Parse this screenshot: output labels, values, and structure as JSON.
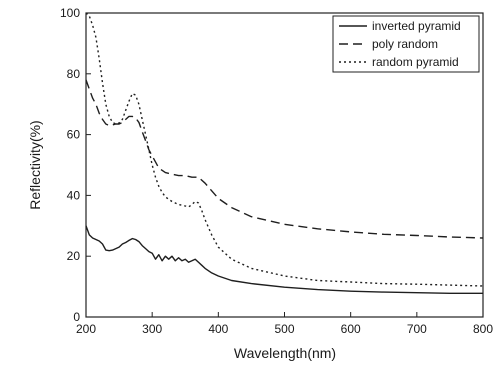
{
  "chart_data": {
    "type": "line",
    "title": "",
    "xlabel": "Wavelength(nm)",
    "ylabel": "Reflectivity(%)",
    "xlim": [
      200,
      800
    ],
    "ylim": [
      0,
      100
    ],
    "xticks": [
      200,
      300,
      400,
      500,
      600,
      700,
      800
    ],
    "yticks": [
      0,
      20,
      40,
      60,
      80,
      100
    ],
    "grid": false,
    "legend_position": "top-right",
    "series": [
      {
        "name": "inverted pyramid",
        "style": "solid",
        "x": [
          200,
          205,
          210,
          215,
          220,
          225,
          230,
          235,
          240,
          245,
          250,
          255,
          260,
          265,
          270,
          275,
          280,
          285,
          290,
          295,
          300,
          305,
          310,
          315,
          320,
          325,
          330,
          335,
          340,
          345,
          350,
          355,
          360,
          365,
          370,
          375,
          380,
          390,
          400,
          420,
          450,
          500,
          550,
          600,
          650,
          700,
          750,
          800
        ],
        "y": [
          30,
          27,
          26,
          25.5,
          25,
          24,
          22,
          21.8,
          22,
          22.5,
          23,
          24,
          24.5,
          25.2,
          25.8,
          25.5,
          24.8,
          23.5,
          22.5,
          21.5,
          21,
          19,
          20.5,
          18.5,
          20,
          19,
          20,
          18.5,
          19.5,
          18.5,
          19,
          18,
          18.5,
          19,
          18,
          17,
          16,
          14.5,
          13.5,
          12,
          11,
          9.8,
          9,
          8.5,
          8.2,
          8,
          7.8,
          7.8
        ]
      },
      {
        "name": "poly random",
        "style": "dashed",
        "x": [
          200,
          205,
          210,
          215,
          220,
          225,
          230,
          235,
          240,
          245,
          250,
          255,
          260,
          265,
          270,
          275,
          280,
          285,
          290,
          295,
          300,
          310,
          320,
          330,
          340,
          350,
          360,
          370,
          380,
          390,
          400,
          420,
          450,
          500,
          550,
          600,
          650,
          700,
          750,
          800
        ],
        "y": [
          78,
          75,
          72,
          70,
          67,
          65,
          63.5,
          63,
          63.2,
          63.5,
          63.5,
          64,
          65,
          66,
          66,
          65.5,
          64,
          61,
          58,
          55,
          53,
          49,
          47.5,
          47,
          46.5,
          46.5,
          46,
          46,
          44,
          41.5,
          39,
          36,
          33,
          30.5,
          29,
          28,
          27.2,
          26.8,
          26.3,
          26
        ]
      },
      {
        "name": "random pyramid",
        "style": "dotted",
        "x": [
          200,
          205,
          210,
          215,
          220,
          225,
          230,
          235,
          240,
          245,
          250,
          255,
          260,
          265,
          270,
          275,
          280,
          285,
          290,
          295,
          300,
          305,
          310,
          315,
          320,
          330,
          340,
          350,
          355,
          360,
          365,
          370,
          375,
          380,
          390,
          400,
          420,
          450,
          500,
          550,
          600,
          650,
          700,
          750,
          800
        ],
        "y": [
          100,
          99,
          96,
          92,
          85,
          77,
          70,
          66,
          64,
          63.5,
          63.8,
          65,
          68,
          71,
          73.5,
          73,
          70,
          65,
          60,
          55,
          50,
          46,
          43,
          41,
          39.5,
          38,
          37,
          36.5,
          36.2,
          37,
          38,
          37.5,
          35,
          32,
          27,
          23,
          19,
          16,
          13.5,
          12,
          11.5,
          11,
          10.8,
          10.5,
          10.2
        ]
      }
    ]
  }
}
